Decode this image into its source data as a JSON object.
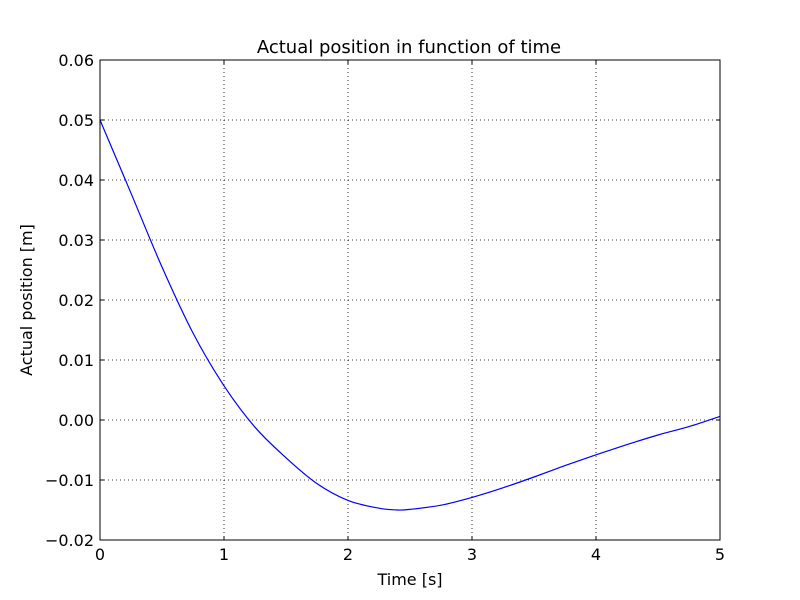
{
  "chart_data": {
    "type": "line",
    "title": "Actual position in function of time",
    "xlabel": "Time [s]",
    "ylabel": "Actual position [m]",
    "xlim": [
      0,
      5
    ],
    "ylim": [
      -0.02,
      0.06
    ],
    "x_ticks": [
      "0",
      "1",
      "2",
      "3",
      "4",
      "5"
    ],
    "y_ticks": [
      "−0.02",
      "−0.01",
      "0.00",
      "0.01",
      "0.02",
      "0.03",
      "0.04",
      "0.05",
      "0.06"
    ],
    "grid": true,
    "series": [
      {
        "color": "#0000ff",
        "x": [
          0,
          0.25,
          0.5,
          0.75,
          1.0,
          1.25,
          1.5,
          1.75,
          2.0,
          2.25,
          2.4,
          2.5,
          2.75,
          3.0,
          3.25,
          3.5,
          3.75,
          4.0,
          4.25,
          4.5,
          4.75,
          5.0
        ],
        "values": [
          0.05,
          0.0378,
          0.0255,
          0.0145,
          0.0057,
          -0.0012,
          -0.0063,
          -0.0106,
          -0.0134,
          -0.0147,
          -0.015,
          -0.0149,
          -0.0142,
          -0.0129,
          -0.0113,
          -0.0095,
          -0.0076,
          -0.0058,
          -0.0041,
          -0.0025,
          -0.0011,
          0.0006
        ]
      }
    ]
  }
}
